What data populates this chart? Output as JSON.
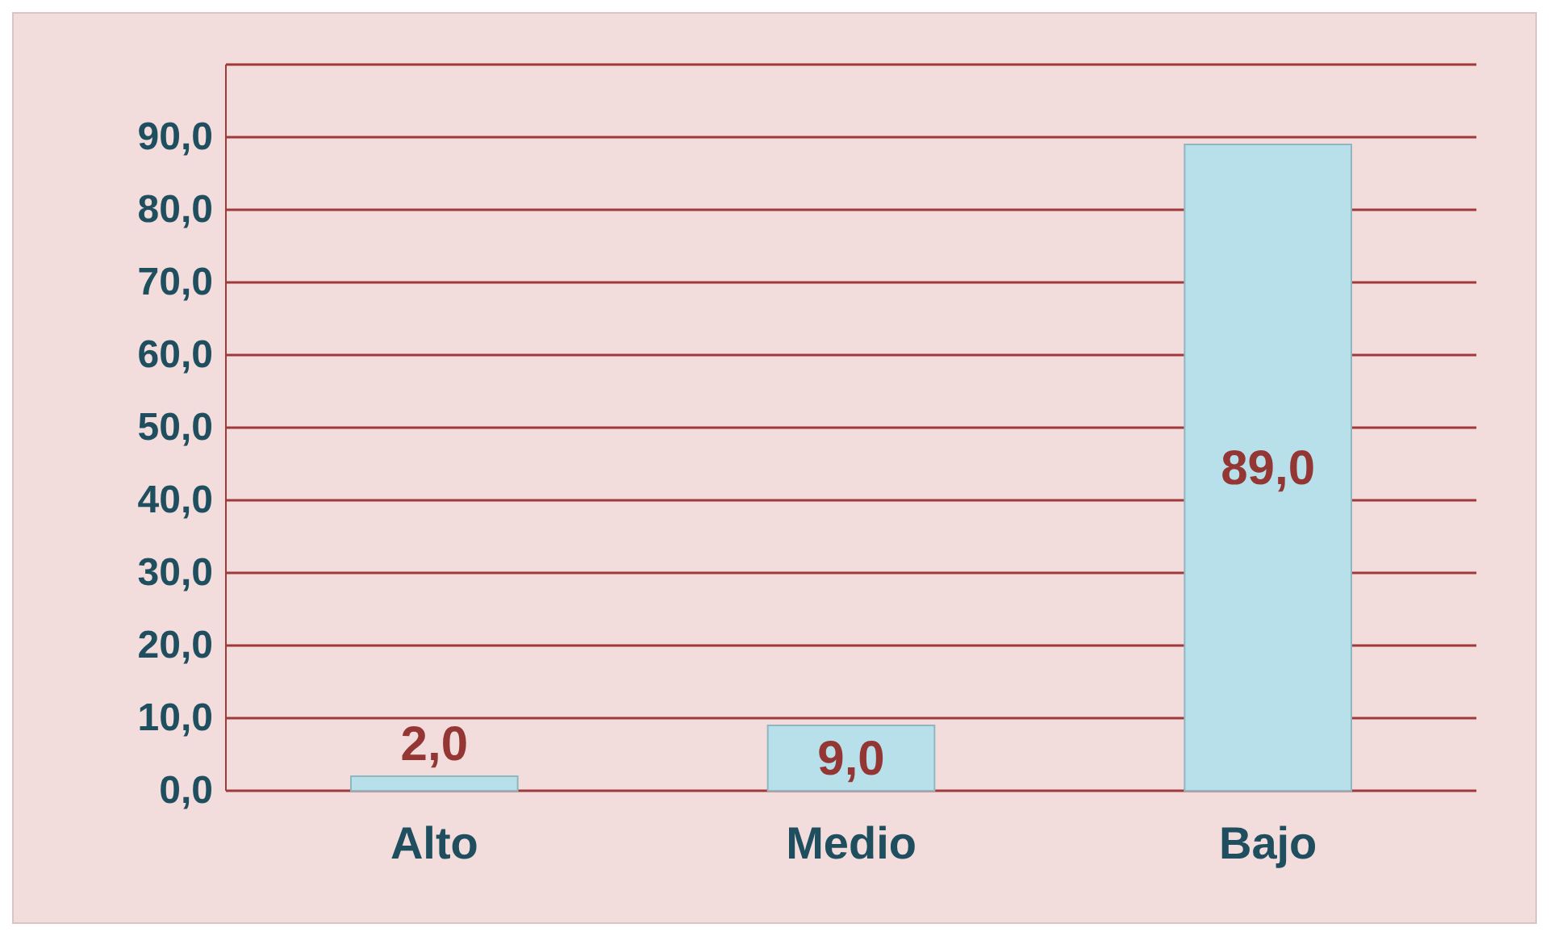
{
  "chart_data": {
    "type": "bar",
    "categories": [
      "Alto",
      "Medio",
      "Bajo"
    ],
    "values": [
      2,
      9,
      89
    ],
    "color": "#b7e0ea",
    "value_labels": [
      "2,0",
      "9,0",
      "89,0"
    ],
    "ylim": [
      0,
      100
    ],
    "yticks": [
      {
        "value": 0,
        "label": "0,0"
      },
      {
        "value": 10,
        "label": "10,0"
      },
      {
        "value": 20,
        "label": "20,0"
      },
      {
        "value": 30,
        "label": "30,0"
      },
      {
        "value": 40,
        "label": "40,0"
      },
      {
        "value": 50,
        "label": "50,0"
      },
      {
        "value": 60,
        "label": "60,0"
      },
      {
        "value": 70,
        "label": "70,0"
      },
      {
        "value": 80,
        "label": "80,0"
      },
      {
        "value": 90,
        "label": "90,0"
      },
      {
        "value": 100,
        "label": null
      }
    ],
    "grid": true
  }
}
